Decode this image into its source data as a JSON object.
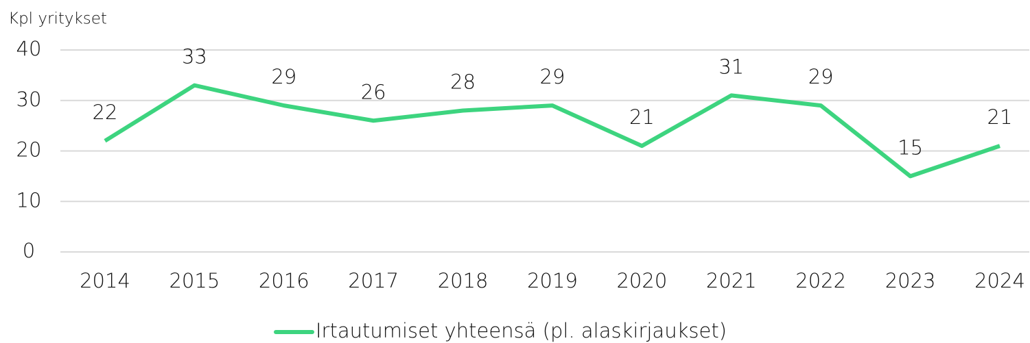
{
  "chart_data": {
    "type": "line",
    "ylabel": "Kpl yritykset",
    "categories": [
      "2014",
      "2015",
      "2016",
      "2017",
      "2018",
      "2019",
      "2020",
      "2021",
      "2022",
      "2023",
      "2024"
    ],
    "series": [
      {
        "name": "Irtautumiset yhteensä (pl. alaskirjaukset)",
        "color": "#3dd47f",
        "values": [
          22,
          33,
          29,
          26,
          28,
          29,
          21,
          31,
          29,
          15,
          21
        ]
      }
    ],
    "ylim": [
      0,
      40
    ],
    "yticks": [
      0,
      10,
      20,
      30,
      40
    ],
    "grid": true,
    "legend": "bottom"
  }
}
